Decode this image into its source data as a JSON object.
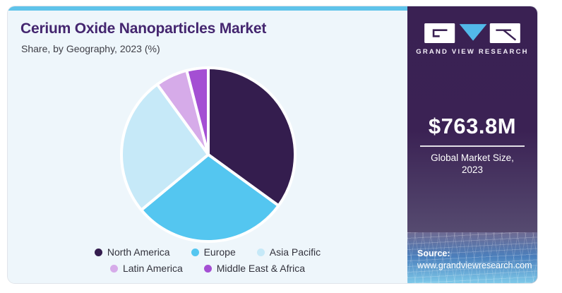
{
  "header": {
    "title": "Cerium Oxide Nanoparticles Market",
    "subtitle": "Share, by Geography, 2023 (%)"
  },
  "chart_data": {
    "type": "pie",
    "title": "Cerium Oxide Nanoparticles Market Share, by Geography, 2023 (%)",
    "unit": "%",
    "labels": [
      "North America",
      "Europe",
      "Asia Pacific",
      "Latin America",
      "Middle East & Africa"
    ],
    "values": [
      35,
      29,
      26,
      6,
      4
    ],
    "colors": [
      "#341d4e",
      "#54c6f0",
      "#c6e9f8",
      "#d6abe9",
      "#a44fd3"
    ],
    "start_angle_deg": 0,
    "direction": "clockwise",
    "legend_position": "bottom",
    "legend_rows": [
      [
        0,
        1,
        2
      ],
      [
        3,
        4
      ]
    ]
  },
  "sidebar": {
    "brand_name": "GRAND VIEW RESEARCH",
    "market_size_value": "$763.8M",
    "caption_line1": "Global Market Size,",
    "caption_line2": "2023",
    "source_label": "Source:",
    "source_url": "www.grandviewresearch.com"
  },
  "theme": {
    "accent_topbar": "#5fc3ea",
    "title_color": "#44266f",
    "panel_bg": "#eef6fb",
    "sidebar_purple": "#3a2153",
    "logo_triangle": "#52b9e9",
    "pie_stroke": "#ffffff"
  }
}
